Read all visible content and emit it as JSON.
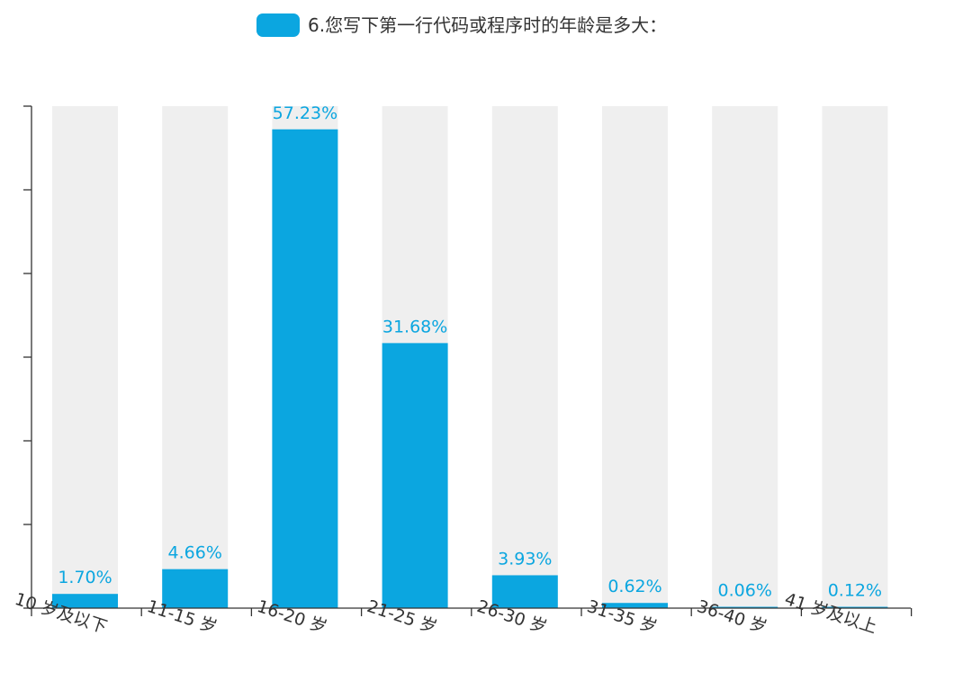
{
  "chart_data": {
    "type": "bar",
    "title": "",
    "xlabel": "",
    "ylabel": "",
    "legend": {
      "position": "top-center",
      "entries": [
        "6.您写下第一行代码或程序时的年龄是多大："
      ]
    },
    "categories": [
      "10 岁及以下",
      "11-15 岁",
      "16-20 岁",
      "21-25 岁",
      "26-30 岁",
      "31-35 岁",
      "36-40 岁",
      "41 岁及以上"
    ],
    "series": [
      {
        "name": "6.您写下第一行代码或程序时的年龄是多大：",
        "values": [
          1.7,
          4.66,
          57.23,
          31.68,
          3.93,
          0.62,
          0.06,
          0.12
        ]
      }
    ],
    "data_labels": [
      "1.70%",
      "4.66%",
      "57.23%",
      "31.68%",
      "3.93%",
      "0.62%",
      "0.06%",
      "0.12%"
    ],
    "ylim": [
      0,
      60
    ],
    "y_tick_labels_shown": false,
    "background_bars": true,
    "grid": false,
    "colors": {
      "bar": "#0ba6e0",
      "background_bar": "#efefef",
      "label": "#0ba6e0",
      "axis": "#333333",
      "text": "#333333"
    }
  }
}
